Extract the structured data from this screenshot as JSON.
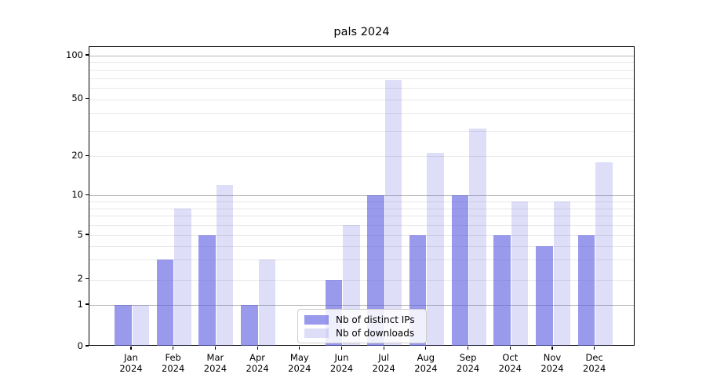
{
  "title": "pals 2024",
  "legend": {
    "items": [
      {
        "label": "Nb of distinct IPs"
      },
      {
        "label": "Nb of downloads"
      }
    ]
  },
  "colors": {
    "bar_distinct_ips": "rgba(92,92,226,0.62)",
    "bar_downloads": "rgba(92,92,226,0.20)",
    "grid_major": "#b8b8b8",
    "grid_minor": "#e8e8e8",
    "axis": "#000000"
  },
  "chart_data": {
    "type": "bar",
    "title": "pals 2024",
    "categories": [
      "Jan 2024",
      "Feb 2024",
      "Mar 2024",
      "Apr 2024",
      "May 2024",
      "Jun 2024",
      "Jul 2024",
      "Aug 2024",
      "Sep 2024",
      "Oct 2024",
      "Nov 2024",
      "Dec 2024"
    ],
    "x_tick_months": [
      "Jan",
      "Feb",
      "Mar",
      "Apr",
      "May",
      "Jun",
      "Jul",
      "Aug",
      "Sep",
      "Oct",
      "Nov",
      "Dec"
    ],
    "x_tick_year": "2024",
    "series": [
      {
        "name": "Nb of distinct IPs",
        "color": "rgba(92,92,226,0.62)",
        "values": [
          1,
          3,
          5,
          1,
          0,
          2,
          10,
          5,
          10,
          5,
          4,
          5
        ]
      },
      {
        "name": "Nb of downloads",
        "color": "rgba(92,92,226,0.20)",
        "values": [
          1,
          8,
          12,
          3,
          0,
          6,
          68,
          21,
          31,
          9,
          9,
          18
        ]
      }
    ],
    "yticks": [
      0,
      1,
      2,
      5,
      10,
      20,
      50,
      100
    ],
    "minor_gridlines": [
      2,
      3,
      4,
      5,
      6,
      7,
      8,
      9,
      20,
      30,
      40,
      50,
      60,
      70,
      80,
      90
    ],
    "major_gridlines": [
      1,
      10,
      100
    ],
    "yscale": "log above 1, linear 0-1",
    "ylim": [
      0,
      115
    ],
    "grid": "both",
    "legend_position": "lower center"
  }
}
